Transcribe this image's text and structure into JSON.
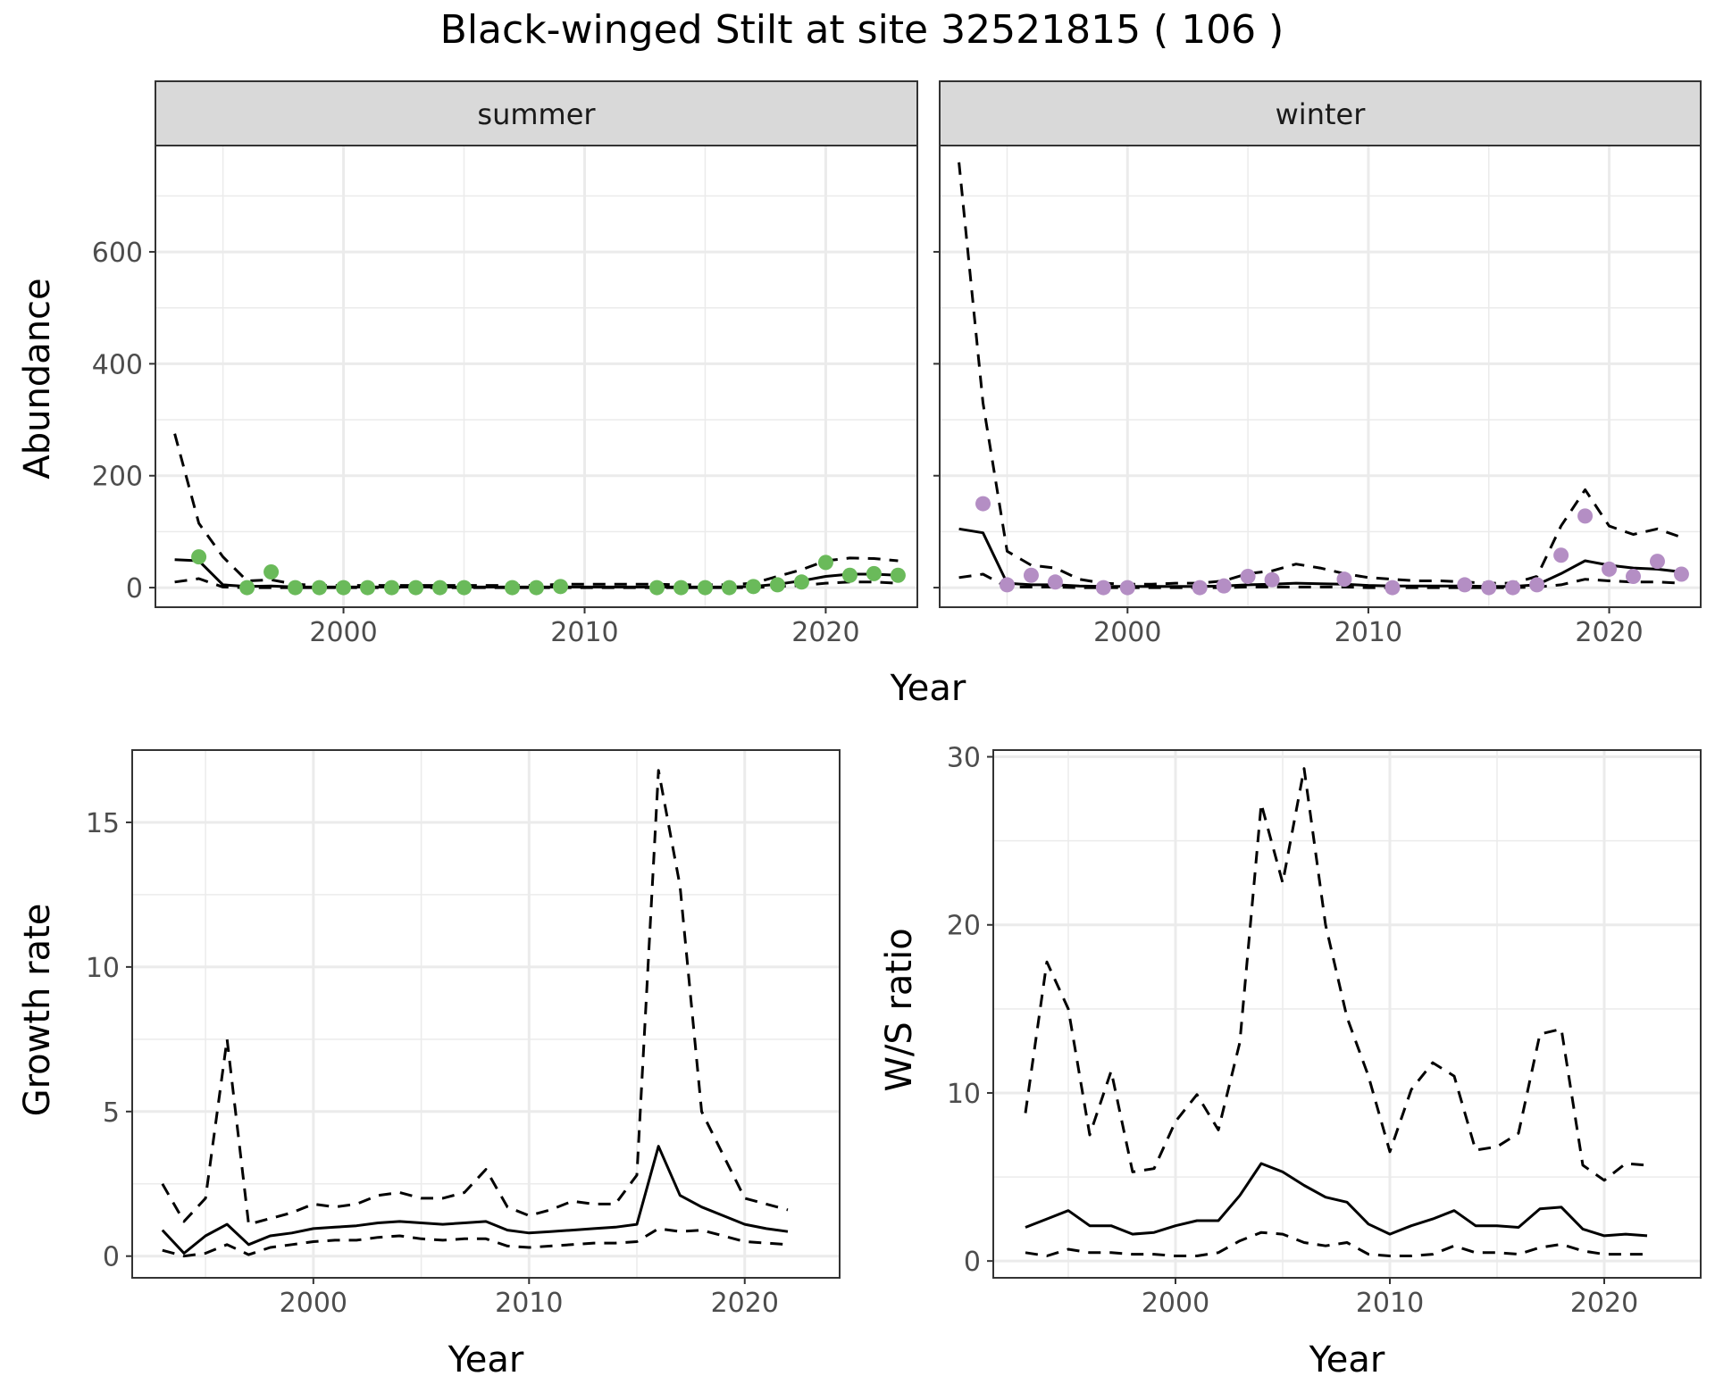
{
  "title": "Black-winged Stilt at site 32521815 ( 106 )",
  "colors": {
    "summer_points": "#6aba5a",
    "winter_points": "#b48ec4",
    "strip_fill": "#d9d9d9",
    "grid": "#ebebeb",
    "line": "#000000"
  },
  "chart_data": [
    {
      "type": "line",
      "id": "abundance",
      "facets": [
        "summer",
        "winter"
      ],
      "xlabel": "Year",
      "ylabel": "Abundance",
      "xticks": [
        2000,
        2010,
        2020
      ],
      "yticks": [
        0,
        200,
        400,
        600
      ],
      "xlim": [
        1992.2,
        2023.8
      ],
      "ylim": [
        -35,
        790
      ],
      "grid": true,
      "panels": [
        {
          "facet": "summer",
          "point_color": "summer",
          "series": [
            {
              "style": "dashed",
              "x": [
                1993,
                1994,
                1995,
                1996,
                1997,
                1998,
                1999,
                2000,
                2001,
                2002,
                2003,
                2004,
                2005,
                2006,
                2007,
                2008,
                2009,
                2010,
                2011,
                2012,
                2013,
                2014,
                2015,
                2016,
                2017,
                2018,
                2019,
                2020,
                2021,
                2022,
                2023
              ],
              "values": [
                275,
                115,
                55,
                12,
                14,
                6,
                4,
                4,
                4,
                4,
                4,
                4,
                4,
                4,
                4,
                4,
                6,
                6,
                6,
                6,
                6,
                5,
                5,
                5,
                8,
                20,
                32,
                48,
                53,
                52,
                48
              ]
            },
            {
              "style": "solid",
              "x": [
                1993,
                1994,
                1995,
                1996,
                1997,
                1998,
                1999,
                2000,
                2001,
                2002,
                2003,
                2004,
                2005,
                2006,
                2007,
                2008,
                2009,
                2010,
                2011,
                2012,
                2013,
                2014,
                2015,
                2016,
                2017,
                2018,
                2019,
                2020,
                2021,
                2022,
                2023
              ],
              "values": [
                50,
                48,
                5,
                2,
                3,
                1,
                1,
                1,
                1,
                1,
                1,
                1,
                1,
                1,
                1,
                1,
                1,
                1,
                1,
                1,
                1,
                1,
                1,
                1,
                2,
                6,
                12,
                20,
                24,
                24,
                22
              ]
            },
            {
              "style": "dashed",
              "x": [
                1993,
                1994,
                1995,
                1996,
                1997,
                1998,
                1999,
                2000,
                2001,
                2002,
                2003,
                2004,
                2005,
                2006,
                2007,
                2008,
                2009,
                2010,
                2011,
                2012,
                2013,
                2014,
                2015,
                2016,
                2017,
                2018,
                2019,
                2020,
                2021,
                2022,
                2023
              ],
              "values": [
                10,
                16,
                1,
                0,
                0,
                0,
                0,
                0,
                0,
                0,
                0,
                0,
                0,
                0,
                0,
                0,
                0,
                0,
                0,
                0,
                0,
                0,
                0,
                0,
                0,
                2,
                4,
                8,
                10,
                10,
                8
              ]
            }
          ],
          "points": {
            "x": [
              1994,
              1996,
              1997,
              1998,
              1999,
              2000,
              2001,
              2002,
              2003,
              2004,
              2005,
              2007,
              2008,
              2009,
              2013,
              2014,
              2015,
              2016,
              2017,
              2018,
              2019,
              2020,
              2021,
              2022,
              2023
            ],
            "values": [
              55,
              0,
              28,
              0,
              0,
              0,
              0,
              0,
              0,
              0,
              0,
              0,
              0,
              2,
              0,
              0,
              0,
              0,
              2,
              5,
              10,
              45,
              22,
              25,
              22
            ]
          }
        },
        {
          "facet": "winter",
          "point_color": "winter",
          "series": [
            {
              "style": "dashed",
              "x": [
                1993,
                1994,
                1995,
                1996,
                1997,
                1998,
                1999,
                2000,
                2001,
                2002,
                2003,
                2004,
                2005,
                2006,
                2007,
                2008,
                2009,
                2010,
                2011,
                2012,
                2013,
                2014,
                2015,
                2016,
                2017,
                2018,
                2019,
                2020,
                2021,
                2022,
                2023
              ],
              "values": [
                760,
                330,
                65,
                40,
                35,
                15,
                8,
                6,
                6,
                8,
                8,
                12,
                25,
                30,
                42,
                35,
                25,
                18,
                15,
                12,
                12,
                10,
                8,
                8,
                20,
                110,
                175,
                110,
                95,
                105,
                90
              ]
            },
            {
              "style": "solid",
              "x": [
                1993,
                1994,
                1995,
                1996,
                1997,
                1998,
                1999,
                2000,
                2001,
                2002,
                2003,
                2004,
                2005,
                2006,
                2007,
                2008,
                2009,
                2010,
                2011,
                2012,
                2013,
                2014,
                2015,
                2016,
                2017,
                2018,
                2019,
                2020,
                2021,
                2022,
                2023
              ],
              "values": [
                105,
                98,
                8,
                5,
                5,
                3,
                2,
                2,
                2,
                2,
                2,
                3,
                5,
                6,
                8,
                7,
                6,
                4,
                3,
                3,
                3,
                3,
                2,
                2,
                5,
                25,
                48,
                40,
                35,
                33,
                28
              ]
            },
            {
              "style": "dashed",
              "x": [
                1993,
                1994,
                1995,
                1996,
                1997,
                1998,
                1999,
                2000,
                2001,
                2002,
                2003,
                2004,
                2005,
                2006,
                2007,
                2008,
                2009,
                2010,
                2011,
                2012,
                2013,
                2014,
                2015,
                2016,
                2017,
                2018,
                2019,
                2020,
                2021,
                2022,
                2023
              ],
              "values": [
                18,
                24,
                1,
                1,
                1,
                0,
                0,
                0,
                0,
                0,
                0,
                0,
                1,
                1,
                1,
                1,
                1,
                0,
                0,
                0,
                0,
                0,
                0,
                0,
                1,
                5,
                15,
                12,
                10,
                10,
                8
              ]
            }
          ],
          "points": {
            "x": [
              1994,
              1995,
              1996,
              1997,
              1999,
              2000,
              2003,
              2004,
              2005,
              2006,
              2009,
              2011,
              2014,
              2015,
              2016,
              2017,
              2018,
              2019,
              2020,
              2021,
              2022,
              2023
            ],
            "values": [
              150,
              5,
              22,
              10,
              0,
              0,
              0,
              3,
              20,
              14,
              15,
              0,
              5,
              0,
              0,
              5,
              58,
              128,
              33,
              20,
              47,
              24
            ]
          }
        }
      ]
    },
    {
      "type": "line",
      "id": "growth",
      "xlabel": "Year",
      "ylabel": "Growth rate",
      "xticks": [
        2000,
        2010,
        2020
      ],
      "yticks": [
        0,
        5,
        10,
        15
      ],
      "xlim": [
        1991.6,
        2024.4
      ],
      "ylim": [
        -0.75,
        17.5
      ],
      "grid": true,
      "series": [
        {
          "style": "dashed",
          "x": [
            1993,
            1994,
            1995,
            1996,
            1997,
            1998,
            1999,
            2000,
            2001,
            2002,
            2003,
            2004,
            2005,
            2006,
            2007,
            2008,
            2009,
            2010,
            2011,
            2012,
            2013,
            2014,
            2015,
            2016,
            2017,
            2018,
            2019,
            2020,
            2021,
            2022
          ],
          "values": [
            2.5,
            1.2,
            2.0,
            7.5,
            1.1,
            1.3,
            1.5,
            1.8,
            1.7,
            1.8,
            2.1,
            2.2,
            2.0,
            2.0,
            2.2,
            3.0,
            1.7,
            1.4,
            1.6,
            1.9,
            1.8,
            1.8,
            2.8,
            16.8,
            12.8,
            5.0,
            3.5,
            2.0,
            1.8,
            1.6
          ]
        },
        {
          "style": "solid",
          "x": [
            1993,
            1994,
            1995,
            1996,
            1997,
            1998,
            1999,
            2000,
            2001,
            2002,
            2003,
            2004,
            2005,
            2006,
            2007,
            2008,
            2009,
            2010,
            2011,
            2012,
            2013,
            2014,
            2015,
            2016,
            2017,
            2018,
            2019,
            2020,
            2021,
            2022
          ],
          "values": [
            0.9,
            0.1,
            0.7,
            1.1,
            0.4,
            0.7,
            0.8,
            0.95,
            1.0,
            1.05,
            1.15,
            1.2,
            1.15,
            1.1,
            1.15,
            1.2,
            0.9,
            0.8,
            0.85,
            0.9,
            0.95,
            1.0,
            1.1,
            3.8,
            2.1,
            1.7,
            1.4,
            1.1,
            0.95,
            0.85
          ]
        },
        {
          "style": "dashed",
          "x": [
            1993,
            1994,
            1995,
            1996,
            1997,
            1998,
            1999,
            2000,
            2001,
            2002,
            2003,
            2004,
            2005,
            2006,
            2007,
            2008,
            2009,
            2010,
            2011,
            2012,
            2013,
            2014,
            2015,
            2016,
            2017,
            2018,
            2019,
            2020,
            2021,
            2022
          ],
          "values": [
            0.2,
            0.0,
            0.1,
            0.4,
            0.05,
            0.3,
            0.4,
            0.5,
            0.55,
            0.55,
            0.65,
            0.7,
            0.6,
            0.55,
            0.6,
            0.6,
            0.35,
            0.3,
            0.35,
            0.4,
            0.45,
            0.45,
            0.5,
            0.95,
            0.85,
            0.9,
            0.7,
            0.5,
            0.45,
            0.4
          ]
        }
      ]
    },
    {
      "type": "line",
      "id": "ws_ratio",
      "xlabel": "Year",
      "ylabel": "W/S ratio",
      "xticks": [
        2000,
        2010,
        2020
      ],
      "yticks": [
        0,
        10,
        20,
        30
      ],
      "xlim": [
        1991.5,
        2024.5
      ],
      "ylim": [
        -1.0,
        30.4
      ],
      "grid": true,
      "series": [
        {
          "style": "dashed",
          "x": [
            1993,
            1994,
            1995,
            1996,
            1997,
            1998,
            1999,
            2000,
            2001,
            2002,
            2003,
            2004,
            2005,
            2006,
            2007,
            2008,
            2009,
            2010,
            2011,
            2012,
            2013,
            2014,
            2015,
            2016,
            2017,
            2018,
            2019,
            2020,
            2021,
            2022
          ],
          "values": [
            8.8,
            17.8,
            15.0,
            7.5,
            11.3,
            5.3,
            5.5,
            8.3,
            9.9,
            7.8,
            13.0,
            27.2,
            22.5,
            29.3,
            20.0,
            14.5,
            11.0,
            6.5,
            10.2,
            11.8,
            11.0,
            6.6,
            6.8,
            7.6,
            13.5,
            13.8,
            5.7,
            4.8,
            5.8,
            5.7
          ]
        },
        {
          "style": "solid",
          "x": [
            1993,
            1994,
            1995,
            1996,
            1997,
            1998,
            1999,
            2000,
            2001,
            2002,
            2003,
            2004,
            2005,
            2006,
            2007,
            2008,
            2009,
            2010,
            2011,
            2012,
            2013,
            2014,
            2015,
            2016,
            2017,
            2018,
            2019,
            2020,
            2021,
            2022
          ],
          "values": [
            2.0,
            2.5,
            3.0,
            2.1,
            2.1,
            1.6,
            1.7,
            2.1,
            2.4,
            2.4,
            3.9,
            5.8,
            5.3,
            4.5,
            3.8,
            3.5,
            2.2,
            1.6,
            2.1,
            2.5,
            3.0,
            2.1,
            2.1,
            2.0,
            3.1,
            3.2,
            1.9,
            1.5,
            1.6,
            1.5
          ]
        },
        {
          "style": "dashed",
          "x": [
            1993,
            1994,
            1995,
            1996,
            1997,
            1998,
            1999,
            2000,
            2001,
            2002,
            2003,
            2004,
            2005,
            2006,
            2007,
            2008,
            2009,
            2010,
            2011,
            2012,
            2013,
            2014,
            2015,
            2016,
            2017,
            2018,
            2019,
            2020,
            2021,
            2022
          ],
          "values": [
            0.5,
            0.3,
            0.7,
            0.5,
            0.5,
            0.4,
            0.4,
            0.3,
            0.3,
            0.5,
            1.2,
            1.7,
            1.6,
            1.1,
            0.9,
            1.1,
            0.4,
            0.3,
            0.3,
            0.4,
            0.9,
            0.5,
            0.5,
            0.4,
            0.8,
            1.0,
            0.6,
            0.4,
            0.4,
            0.4
          ]
        }
      ]
    }
  ]
}
